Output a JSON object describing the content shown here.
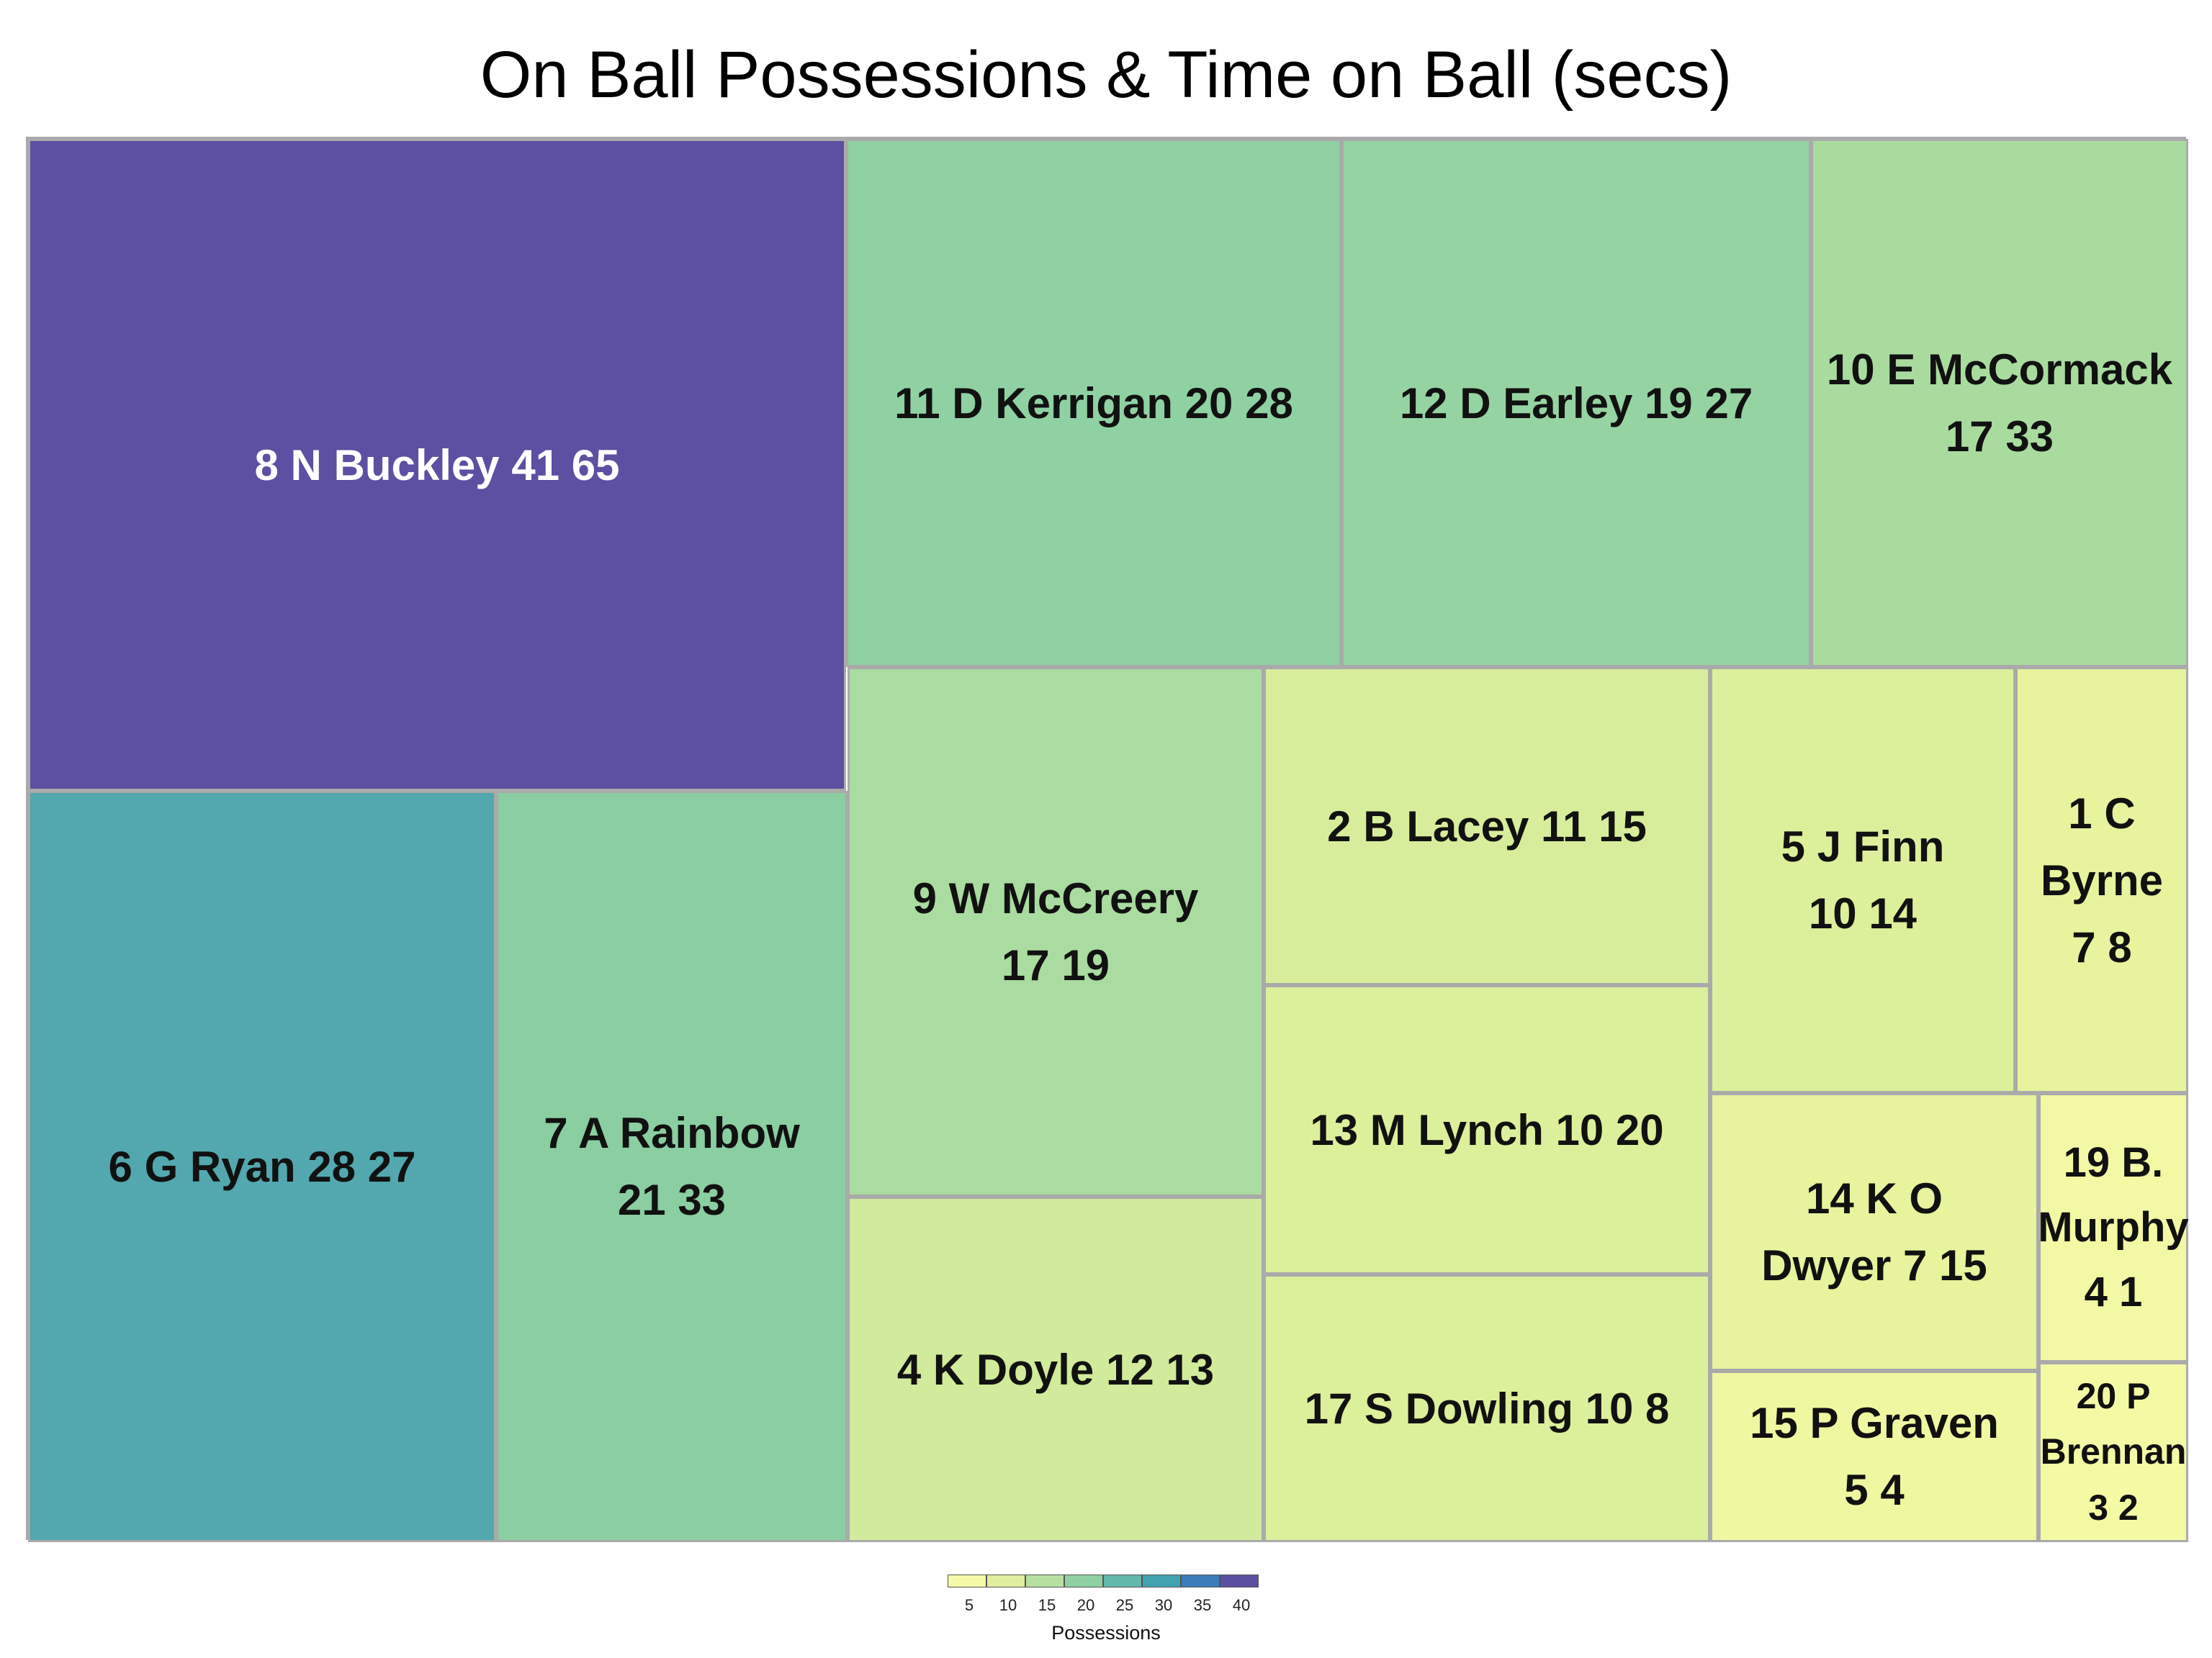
{
  "chart_data": {
    "type": "treemap",
    "title": "On Ball Possessions & Time on Ball (secs)",
    "legend": {
      "title": "Possessions",
      "ticks": [
        "5",
        "10",
        "15",
        "20",
        "25",
        "30",
        "35",
        "40"
      ],
      "colors": [
        "#f3f9a6",
        "#dfee9f",
        "#b7e0a0",
        "#8fd0a2",
        "#62b8aa",
        "#41a2b0",
        "#3a7dba",
        "#5a4fa1"
      ],
      "placement": "bottom-center"
    },
    "colors": {
      "low": "#f3f9a6",
      "high": "#5a4fa1",
      "border": "#aaaaaa"
    },
    "tiles": [
      {
        "label": "8 N Buckley 41 65",
        "player": "8 N Buckley",
        "possessions": 41,
        "time_secs": 65,
        "color": "#5d4fa1"
      },
      {
        "label": "6 G Ryan 28 27",
        "player": "6 G Ryan",
        "possessions": 28,
        "time_secs": 27,
        "color": "#52a8ae"
      },
      {
        "label": "7 A Rainbow\n21 33",
        "player": "7 A Rainbow",
        "possessions": 21,
        "time_secs": 33,
        "color": "#8acea1"
      },
      {
        "label": "11 D Kerrigan 20 28",
        "player": "11 D Kerrigan",
        "possessions": 20,
        "time_secs": 28,
        "color": "#8fd1a3"
      },
      {
        "label": "12 D Earley 19 27",
        "player": "12 D Earley",
        "possessions": 19,
        "time_secs": 27,
        "color": "#96d3a2"
      },
      {
        "label": "10 E McCormack\n17 33",
        "player": "10 E McCormack",
        "possessions": 17,
        "time_secs": 33,
        "color": "#a9db9f"
      },
      {
        "label": "9 W McCreery\n17 19",
        "player": "9 W McCreery",
        "possessions": 17,
        "time_secs": 19,
        "color": "#aadba0"
      },
      {
        "label": "4 K Doyle 12 13",
        "player": "4 K Doyle",
        "possessions": 12,
        "time_secs": 13,
        "color": "#d1ea9b"
      },
      {
        "label": "2 B Lacey 11 15",
        "player": "2 B Lacey",
        "possessions": 11,
        "time_secs": 15,
        "color": "#d7ed9b"
      },
      {
        "label": "13 M Lynch 10 20",
        "player": "13 M Lynch",
        "possessions": 10,
        "time_secs": 20,
        "color": "#dcef9b"
      },
      {
        "label": "17 S Dowling 10 8",
        "player": "17 S Dowling",
        "possessions": 10,
        "time_secs": 8,
        "color": "#dcef9b"
      },
      {
        "label": "5 J Finn\n10 14",
        "player": "5 J Finn",
        "possessions": 10,
        "time_secs": 14,
        "color": "#dcef9b"
      },
      {
        "label": "1 C\nByrne\n7 8",
        "player": "1 C Byrne",
        "possessions": 7,
        "time_secs": 8,
        "color": "#e7f39d"
      },
      {
        "label": "14 K O\nDwyer 7 15",
        "player": "14 K O Dwyer",
        "possessions": 7,
        "time_secs": 15,
        "color": "#e7f39d"
      },
      {
        "label": "19 B.\nMurphy\n4 1",
        "player": "19 B. Murphy",
        "possessions": 4,
        "time_secs": 1,
        "color": "#f2f8a3"
      },
      {
        "label": "15 P Graven\n5 4",
        "player": "15 P Graven",
        "possessions": 5,
        "time_secs": 4,
        "color": "#eff7a1"
      },
      {
        "label": "20 P\nBrennan\n3 2",
        "player": "20 P Brennan",
        "possessions": 3,
        "time_secs": 2,
        "color": "#f4f9a4"
      }
    ]
  }
}
